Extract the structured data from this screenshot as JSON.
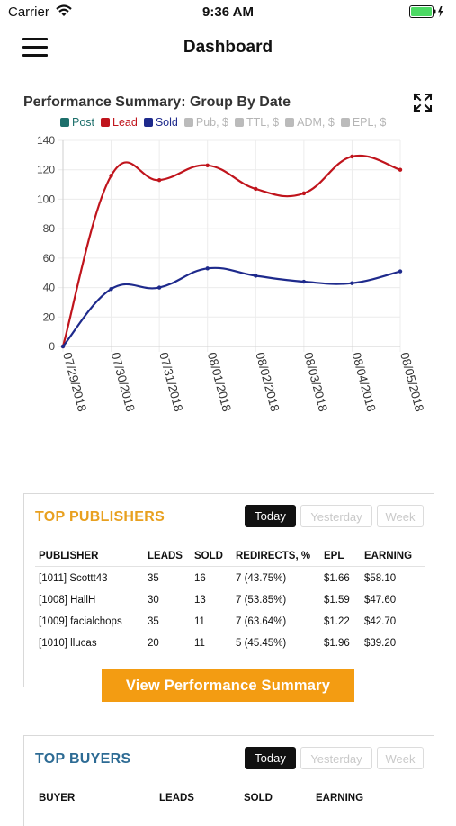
{
  "status": {
    "carrier": "Carrier",
    "time": "9:36 AM"
  },
  "nav": {
    "title": "Dashboard"
  },
  "chart_title": "Performance Summary: Group By Date",
  "legend": [
    {
      "label": "Post",
      "color": "#1d6f6b",
      "enabled": true
    },
    {
      "label": "Lead",
      "color": "#c0141c",
      "enabled": true
    },
    {
      "label": "Sold",
      "color": "#1e2a8c",
      "enabled": true
    },
    {
      "label": "Pub, $",
      "color": "#bbbbbb",
      "enabled": false
    },
    {
      "label": "TTL, $",
      "color": "#bbbbbb",
      "enabled": false
    },
    {
      "label": "ADM, $",
      "color": "#bbbbbb",
      "enabled": false
    },
    {
      "label": "EPL, $",
      "color": "#bbbbbb",
      "enabled": false
    }
  ],
  "chart_data": {
    "type": "line",
    "x": [
      "07/29/2018",
      "07/30/2018",
      "07/31/2018",
      "08/01/2018",
      "08/02/2018",
      "08/03/2018",
      "08/04/2018",
      "08/05/2018"
    ],
    "ylim": [
      0,
      140
    ],
    "yticks": [
      0,
      20,
      40,
      60,
      80,
      100,
      120,
      140
    ],
    "grid": true,
    "series": [
      {
        "name": "Lead",
        "color": "#c0141c",
        "values": [
          0,
          116,
          113,
          123,
          107,
          104,
          129,
          120
        ]
      },
      {
        "name": "Sold",
        "color": "#1e2a8c",
        "values": [
          0,
          39,
          40,
          53,
          48,
          44,
          43,
          51
        ]
      }
    ]
  },
  "publishers": {
    "title": "TOP PUBLISHERS",
    "tabs": [
      "Today",
      "Yesterday",
      "Week"
    ],
    "headers": [
      "PUBLISHER",
      "LEADS",
      "SOLD",
      "REDIRECTS, %",
      "EPL",
      "EARNING"
    ],
    "rows": [
      [
        "[1011] Scottt43",
        "35",
        "16",
        "7 (43.75%)",
        "$1.66",
        "$58.10"
      ],
      [
        "[1008] HallH",
        "30",
        "13",
        "7 (53.85%)",
        "$1.59",
        "$47.60"
      ],
      [
        "[1009] facialchops",
        "35",
        "11",
        "7 (63.64%)",
        "$1.22",
        "$42.70"
      ],
      [
        "[1010] llucas",
        "20",
        "11",
        "5 (45.45%)",
        "$1.96",
        "$39.20"
      ]
    ],
    "cta": "View Performance Summary"
  },
  "buyers": {
    "title": "TOP BUYERS",
    "tabs": [
      "Today",
      "Yesterday",
      "Week"
    ],
    "headers": [
      "BUYER",
      "LEADS",
      "SOLD",
      "EARNING"
    ]
  }
}
